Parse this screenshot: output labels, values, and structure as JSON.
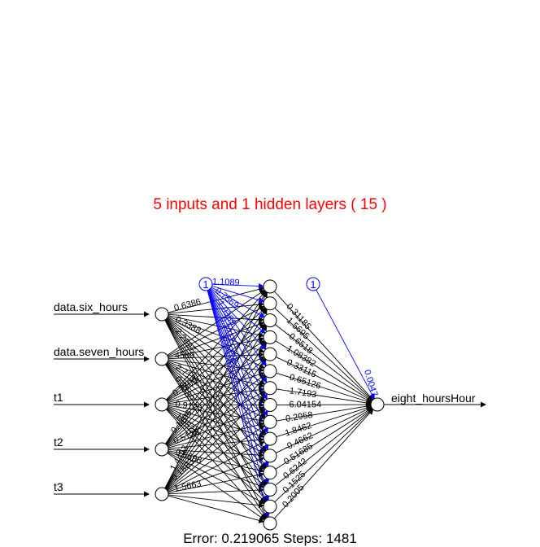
{
  "title": "5 inputs and 1 hidden layers ( 15 )",
  "footer": "Error: 0.219065   Steps: 1481",
  "colors": {
    "title": "#ff0000",
    "weights": "#000000",
    "bias": "#0000ff",
    "background": "#ffffff"
  },
  "network": {
    "inputs": [
      "data.six_hours",
      "data.seven_hours",
      "t1",
      "t2",
      "t3"
    ],
    "hidden_count": 15,
    "output": "eight_hoursHour",
    "bias_label": "1",
    "output_bias_weight": "0.0047",
    "hidden_to_output_weights": [
      "0.31185",
      "1.5695",
      "-0.6518",
      "1.08382",
      "0.33115",
      "-0.65126",
      "-1.7193",
      "-6.04154",
      "0.2958",
      "1.8462",
      "-0.4662",
      "0.51685",
      "0.6242",
      "0.1525",
      "0.2005"
    ],
    "input_edge_labels": [
      "0.6386",
      "4589",
      "0.9125",
      "0.5698",
      "1.4453",
      "0.3388",
      "2.7131",
      "1.0525",
      "0.1706",
      "0.1883",
      "2.2697",
      "0.3389",
      "0.7709",
      "0.5125",
      "1.5663"
    ],
    "bias_edge_labels": [
      "1.1089",
      "0.7569",
      "1.0389",
      "0.2211",
      "0.4476"
    ]
  }
}
